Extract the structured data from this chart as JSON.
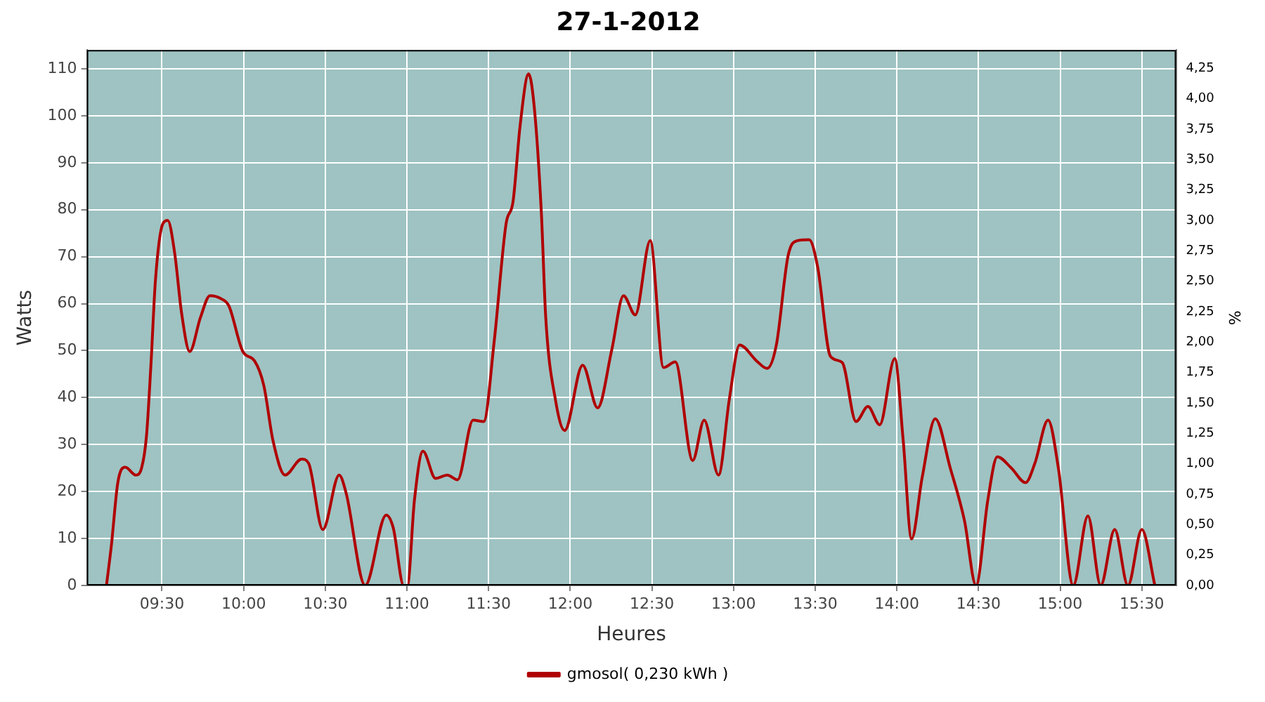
{
  "chart_data": {
    "type": "line",
    "title": "27-1-2012",
    "xlabel": "Heures",
    "ylabel": "Watts",
    "y2label": "%",
    "xlim": [
      9.04,
      15.71
    ],
    "xticks": [
      {
        "value": 9.5,
        "label": "09:30"
      },
      {
        "value": 10,
        "label": "10:00"
      },
      {
        "value": 10.5,
        "label": "10:30"
      },
      {
        "value": 11,
        "label": "11:00"
      },
      {
        "value": 11.5,
        "label": "11:30"
      },
      {
        "value": 12,
        "label": "12:00"
      },
      {
        "value": 12.5,
        "label": "12:30"
      },
      {
        "value": 13,
        "label": "13:00"
      },
      {
        "value": 13.5,
        "label": "13:30"
      },
      {
        "value": 14,
        "label": "14:00"
      },
      {
        "value": 14.5,
        "label": "14:30"
      },
      {
        "value": 15,
        "label": "15:00"
      },
      {
        "value": 15.5,
        "label": "15:30"
      }
    ],
    "ylim": [
      0,
      114
    ],
    "yticks": [
      0,
      10,
      20,
      30,
      40,
      50,
      60,
      70,
      80,
      90,
      100,
      110
    ],
    "y2lim": [
      0,
      4.4
    ],
    "y2ticks": [
      {
        "value": 0,
        "label": "0,00"
      },
      {
        "value": 0.25,
        "label": "0,25"
      },
      {
        "value": 0.5,
        "label": "0,50"
      },
      {
        "value": 0.75,
        "label": "0,75"
      },
      {
        "value": 1,
        "label": "1,00"
      },
      {
        "value": 1.25,
        "label": "1,25"
      },
      {
        "value": 1.5,
        "label": "1,50"
      },
      {
        "value": 1.75,
        "label": "1,75"
      },
      {
        "value": 2,
        "label": "2,00"
      },
      {
        "value": 2.25,
        "label": "2,25"
      },
      {
        "value": 2.5,
        "label": "2,50"
      },
      {
        "value": 2.75,
        "label": "2,75"
      },
      {
        "value": 3,
        "label": "3,00"
      },
      {
        "value": 3.25,
        "label": "3,25"
      },
      {
        "value": 3.5,
        "label": "3,50"
      },
      {
        "value": 3.75,
        "label": "3,75"
      },
      {
        "value": 4,
        "label": "4,00"
      },
      {
        "value": 4.25,
        "label": "4,25"
      }
    ],
    "grid": true,
    "legend": "bottom",
    "marker": "none",
    "line_style": "solid",
    "series": [
      {
        "name": "gmosol( 0,230 kWh )",
        "color": "#b00000",
        "x": [
          9.16,
          9.19,
          9.23,
          9.275,
          9.34,
          9.375,
          9.405,
          9.433,
          9.46,
          9.505,
          9.535,
          9.578,
          9.62,
          9.67,
          9.735,
          9.794,
          9.865,
          9.91,
          9.995,
          10.067,
          10.124,
          10.18,
          10.254,
          10.355,
          10.398,
          10.485,
          10.585,
          10.628,
          10.744,
          10.873,
          10.916,
          10.98,
          11.003,
          11.046,
          11.098,
          11.175,
          11.247,
          11.31,
          11.405,
          11.47,
          11.535,
          11.607,
          11.65,
          11.693,
          11.745,
          11.78,
          11.823,
          11.85,
          11.909,
          11.966,
          12.076,
          12.168,
          12.255,
          12.326,
          12.398,
          12.49,
          12.571,
          12.643,
          12.75,
          12.82,
          12.908,
          12.974,
          13.037,
          13.147,
          13.205,
          13.262,
          13.334,
          13.39,
          13.463,
          13.515,
          13.593,
          13.665,
          13.75,
          13.823,
          13.895,
          13.987,
          14.039,
          14.09,
          14.155,
          14.235,
          14.327,
          14.414,
          14.485,
          14.557,
          14.615,
          14.701,
          14.788,
          14.845,
          14.926,
          14.989,
          15.08,
          15.17,
          15.248,
          15.334,
          15.415,
          15.5,
          15.58
        ],
        "values": [
          0,
          8.5,
          22,
          25.2,
          23.5,
          25,
          31.8,
          47.4,
          65,
          77,
          77.7,
          70.7,
          58,
          49.8,
          57,
          61.7,
          61,
          59.5,
          49.8,
          47.8,
          42.5,
          30.8,
          23.5,
          26.9,
          26,
          11.9,
          23.5,
          19.6,
          0,
          15,
          12.3,
          0,
          0,
          18.2,
          28.6,
          22.8,
          23.5,
          22.5,
          35.2,
          34.9,
          52.2,
          77,
          81.8,
          97.9,
          108.9,
          101.7,
          79.4,
          57,
          39.6,
          33,
          46.9,
          37.8,
          50.3,
          61.7,
          57.6,
          73.4,
          46.4,
          47.6,
          26.6,
          35.2,
          23.5,
          39.6,
          51.2,
          47.6,
          46.2,
          51.2,
          70.2,
          73.4,
          73.6,
          67.8,
          48.8,
          47.5,
          34.9,
          38.1,
          34.2,
          48.3,
          30.8,
          9.9,
          23,
          35.5,
          25,
          13.8,
          0,
          18.2,
          27.4,
          25,
          21.9,
          26,
          35.2,
          25,
          0,
          14.8,
          0,
          11.9,
          0,
          11.9,
          0
        ]
      }
    ]
  }
}
